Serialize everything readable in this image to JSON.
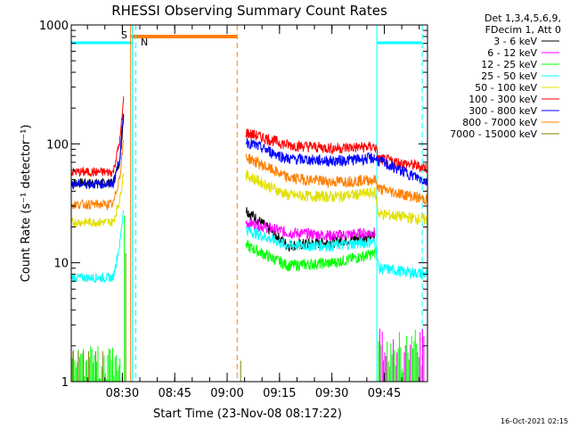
{
  "chart_data": {
    "type": "line",
    "title": "RHESSI Observing Summary Count Rates",
    "xlabel": "Start Time (23-Nov-08 08:17:22)",
    "ylabel": "Count Rate (s⁻¹ detector⁻¹)",
    "y_scale": "log",
    "ylim": [
      1,
      1000
    ],
    "xlim_minutes": [
      0,
      102
    ],
    "yticks": [
      {
        "value": 1,
        "label": "1"
      },
      {
        "value": 10,
        "label": "10"
      },
      {
        "value": 100,
        "label": "100"
      },
      {
        "value": 1000,
        "label": "1000"
      }
    ],
    "xticks": [
      {
        "minute": 14.63,
        "label": "08:30"
      },
      {
        "minute": 29.63,
        "label": "08:45"
      },
      {
        "minute": 44.63,
        "label": "09:00"
      },
      {
        "minute": 59.63,
        "label": "09:15"
      },
      {
        "minute": 74.63,
        "label": "09:30"
      },
      {
        "minute": 89.63,
        "label": "09:45"
      }
    ],
    "legend_header": [
      "Det 1,3,4,5,6,9,",
      "FDecim 1, Att 0"
    ],
    "series": [
      {
        "name": "3 - 6 keV",
        "color": "#000000",
        "pre": [
          [
            0,
            47
          ],
          [
            12,
            47
          ],
          [
            14,
            75
          ],
          [
            15,
            180
          ]
        ],
        "post": [
          [
            50,
            28
          ],
          [
            62,
            14
          ],
          [
            75,
            15
          ],
          [
            87,
            17
          ]
        ]
      },
      {
        "name": "6 - 12 keV",
        "color": "#ff00ff",
        "pre": [],
        "post": [
          [
            50,
            22
          ],
          [
            62,
            18
          ],
          [
            75,
            17
          ],
          [
            87,
            18
          ]
        ]
      },
      {
        "name": "12 - 25 keV",
        "color": "#00ff00",
        "pre": [],
        "post": [
          [
            50,
            14
          ],
          [
            62,
            9.5
          ],
          [
            75,
            10
          ],
          [
            87,
            12
          ]
        ]
      },
      {
        "name": "25 - 50 keV",
        "color": "#00ffff",
        "pre": [
          [
            0,
            7.5
          ],
          [
            12,
            7.5
          ],
          [
            14,
            15
          ],
          [
            15,
            30
          ]
        ],
        "post": [
          [
            50,
            19
          ],
          [
            62,
            14
          ],
          [
            75,
            14
          ],
          [
            87,
            15
          ],
          [
            88,
            9
          ],
          [
            102,
            8
          ]
        ]
      },
      {
        "name": "50 - 100 keV",
        "color": "#e0e000",
        "pre": [
          [
            0,
            22
          ],
          [
            12,
            22
          ],
          [
            14,
            35
          ],
          [
            15,
            60
          ]
        ],
        "post": [
          [
            50,
            55
          ],
          [
            62,
            37
          ],
          [
            75,
            36
          ],
          [
            87,
            39
          ],
          [
            88,
            26
          ],
          [
            102,
            23
          ]
        ]
      },
      {
        "name": "100 - 300 keV",
        "color": "#ff0000",
        "pre": [
          [
            0,
            58
          ],
          [
            12,
            58
          ],
          [
            14,
            110
          ],
          [
            15,
            240
          ]
        ],
        "post": [
          [
            50,
            125
          ],
          [
            62,
            98
          ],
          [
            75,
            92
          ],
          [
            87,
            95
          ],
          [
            88,
            75
          ],
          [
            102,
            63
          ]
        ]
      },
      {
        "name": "300 - 800 keV",
        "color": "#0000ff",
        "pre": [
          [
            0,
            46
          ],
          [
            12,
            46
          ],
          [
            14,
            80
          ],
          [
            15,
            190
          ]
        ],
        "post": [
          [
            50,
            105
          ],
          [
            62,
            75
          ],
          [
            75,
            72
          ],
          [
            87,
            76
          ],
          [
            88,
            72
          ],
          [
            102,
            48
          ]
        ]
      },
      {
        "name": "800 - 7000 keV",
        "color": "#ff7f00",
        "pre": [
          [
            0,
            31
          ],
          [
            12,
            31
          ],
          [
            14,
            55
          ],
          [
            15,
            110
          ]
        ],
        "post": [
          [
            50,
            78
          ],
          [
            62,
            52
          ],
          [
            75,
            48
          ],
          [
            87,
            50
          ],
          [
            88,
            42
          ],
          [
            102,
            34
          ]
        ]
      },
      {
        "name": "7000 - 15000 keV",
        "color": "#808000",
        "pre": [],
        "post": []
      }
    ],
    "annotations": [
      {
        "text": "S",
        "color": "#ff7f00"
      },
      {
        "text": "N",
        "color": "#00ffff"
      }
    ],
    "stamp": "16-Oct-2021 02:15"
  }
}
